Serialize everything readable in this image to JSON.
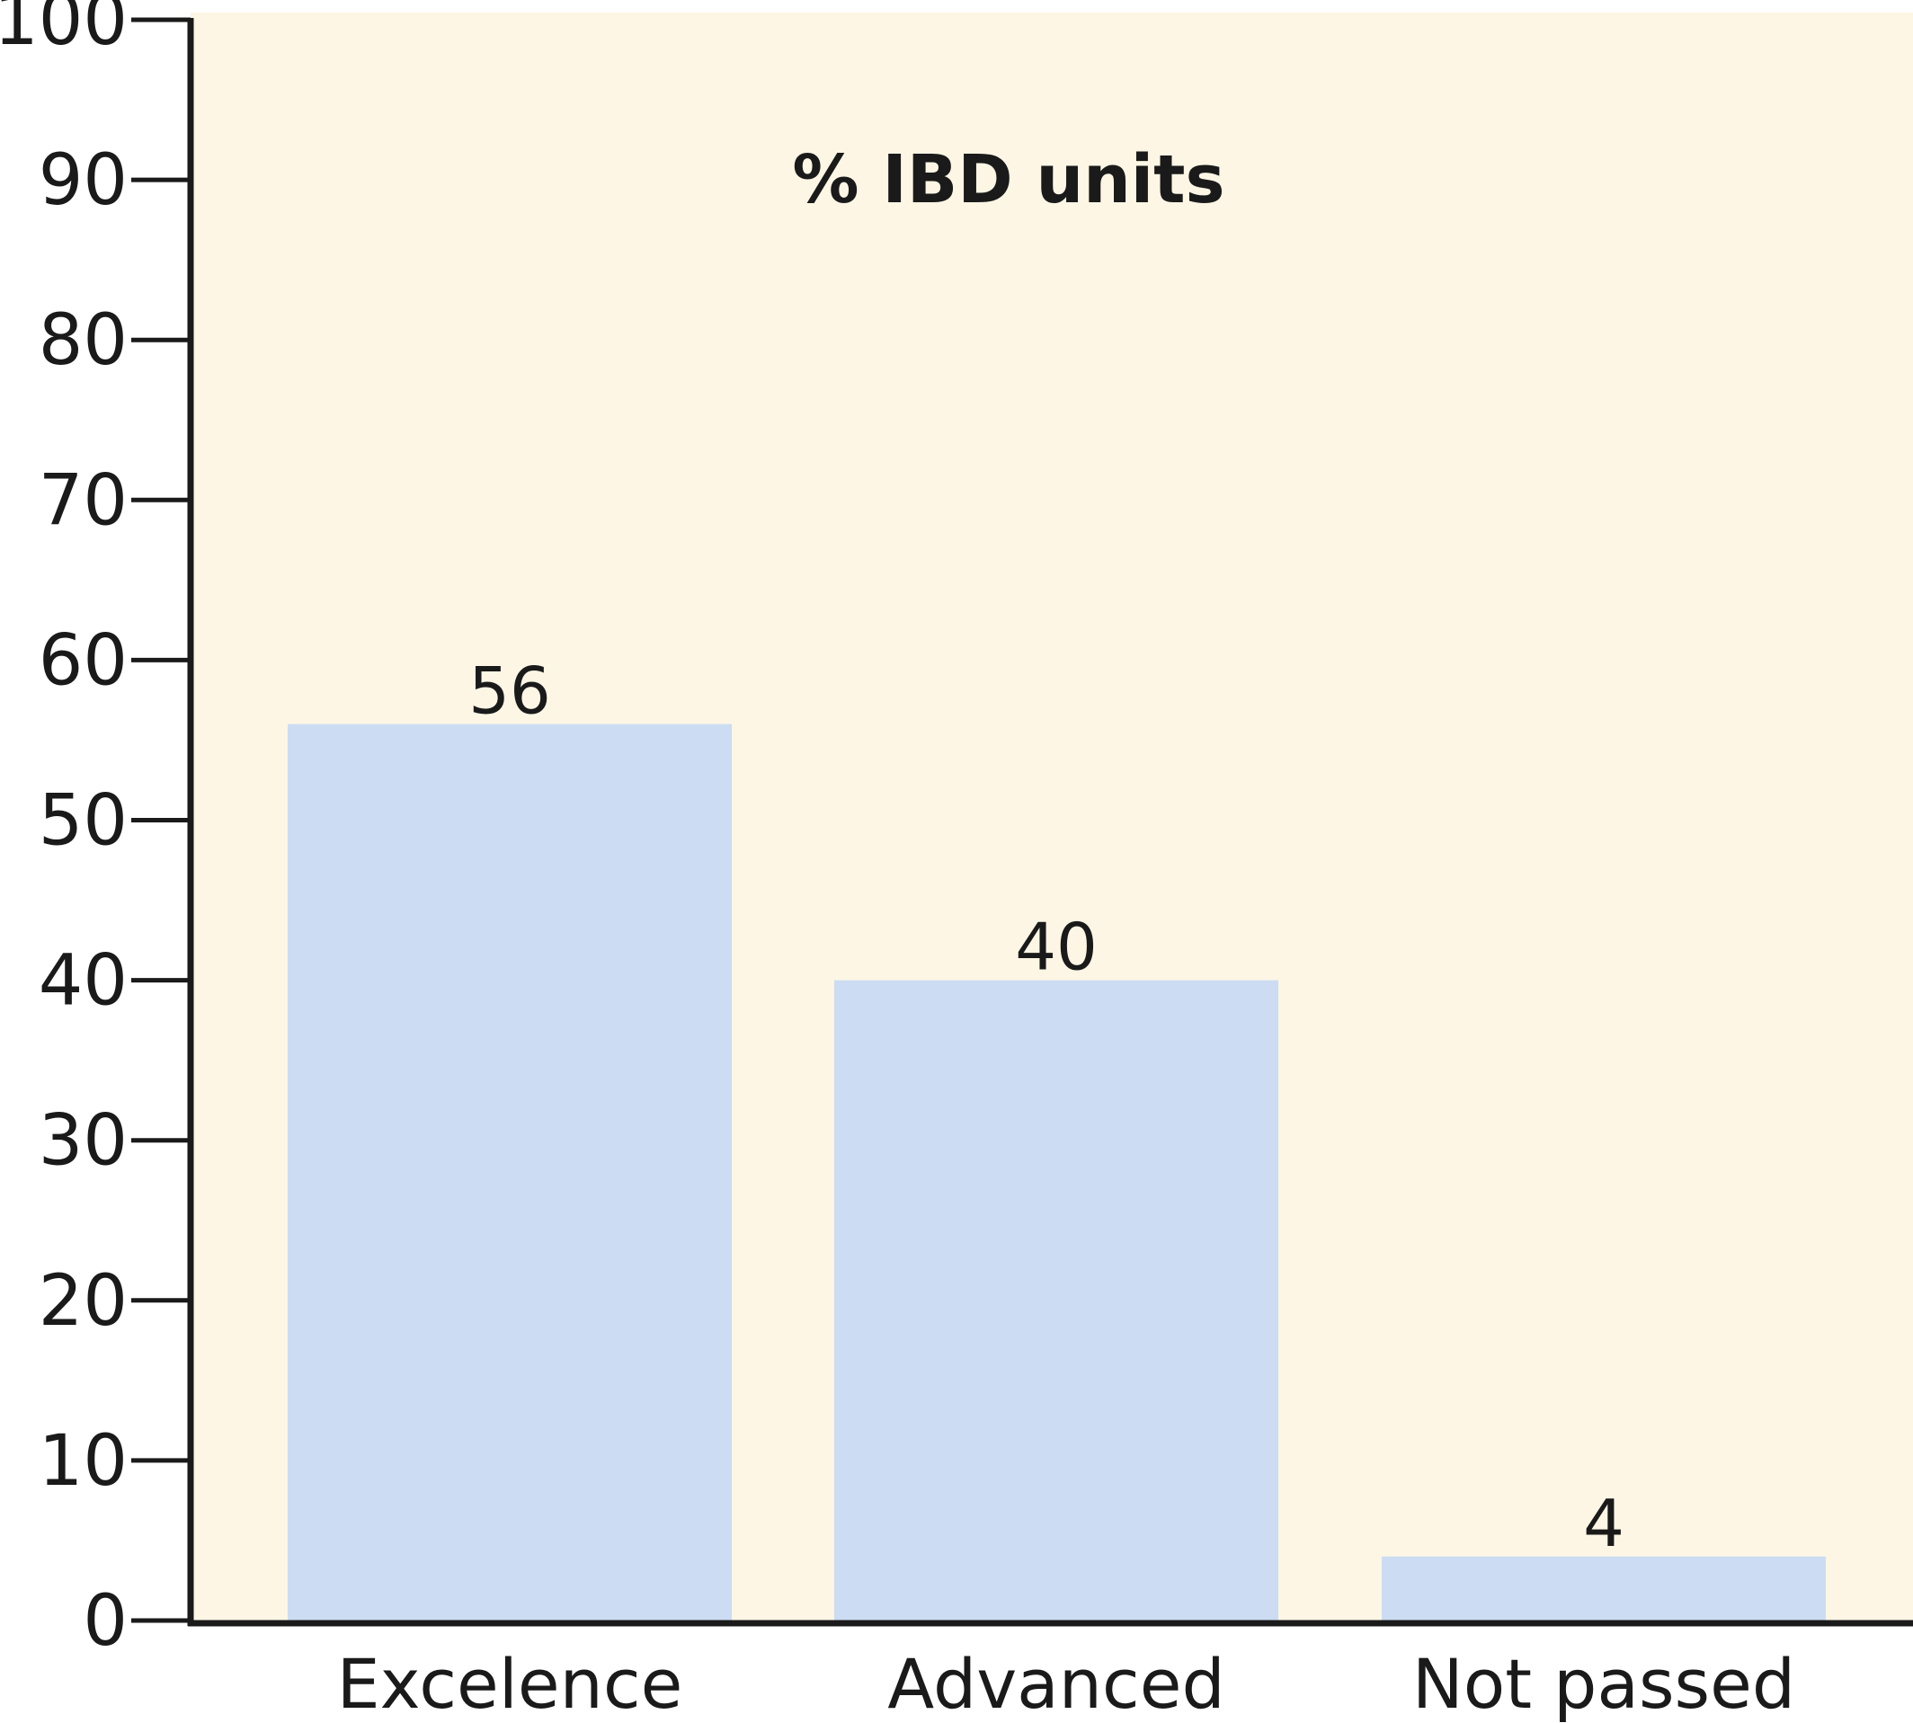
{
  "chart_data": {
    "type": "bar",
    "title": "% IBD units",
    "xlabel": "",
    "ylabel": "",
    "categories": [
      "Excelence",
      "Advanced",
      "Not passed"
    ],
    "values": [
      56,
      40,
      4
    ],
    "data_labels": [
      "56",
      "40",
      "4"
    ],
    "ylim": [
      0,
      100
    ],
    "yticks": [
      0,
      10,
      20,
      30,
      40,
      50,
      60,
      70,
      80,
      90,
      100
    ],
    "grid": false,
    "legend": "none",
    "colors": {
      "plot_background": "#fdf6e5",
      "bar": "#ccdcf2",
      "axis": "#1a1a1a"
    }
  }
}
